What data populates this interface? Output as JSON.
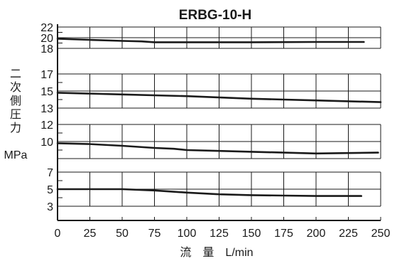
{
  "chart_data": {
    "type": "line",
    "title": "ERBG-10-H",
    "xlabel": "流　量　L/min",
    "ylabel_vertical": [
      "二",
      "次",
      "側",
      "圧",
      "力"
    ],
    "ylabel_unit": "MPa",
    "xlim": [
      0,
      250
    ],
    "x_ticks": [
      0,
      25,
      50,
      75,
      100,
      125,
      150,
      175,
      200,
      225,
      250
    ],
    "grid": true,
    "panels": [
      {
        "ylim": [
          18,
          22
        ],
        "y_ticks": [
          18,
          20,
          22
        ],
        "y_tick_labels": [
          "18",
          "20",
          "22"
        ],
        "x": [
          0,
          25,
          50,
          65,
          75,
          100,
          150,
          200,
          237
        ],
        "y": [
          19.8,
          19.6,
          19.4,
          19.3,
          19.15,
          19.15,
          19.15,
          19.2,
          19.2
        ]
      },
      {
        "ylim": [
          13,
          17
        ],
        "y_ticks": [
          13,
          15,
          17
        ],
        "y_tick_labels": [
          "13",
          "15",
          "17"
        ],
        "x": [
          0,
          50,
          100,
          150,
          200,
          250
        ],
        "y": [
          14.8,
          14.6,
          14.4,
          14.1,
          13.9,
          13.7
        ]
      },
      {
        "ylim": [
          8,
          12
        ],
        "y_ticks": [
          8,
          10,
          12
        ],
        "y_tick_labels": [
          "",
          "10",
          "12"
        ],
        "x": [
          0,
          25,
          50,
          75,
          90,
          100,
          125,
          150,
          175,
          200,
          225,
          248
        ],
        "y": [
          9.8,
          9.7,
          9.5,
          9.25,
          9.15,
          9.0,
          8.9,
          8.8,
          8.7,
          8.6,
          8.65,
          8.7
        ]
      },
      {
        "ylim": [
          3,
          7
        ],
        "y_ticks": [
          3,
          5,
          7
        ],
        "y_tick_labels": [
          "3",
          "5",
          "7"
        ],
        "x": [
          0,
          25,
          50,
          75,
          100,
          125,
          150,
          175,
          200,
          235
        ],
        "y": [
          5.0,
          5.0,
          5.0,
          4.85,
          4.6,
          4.4,
          4.3,
          4.25,
          4.2,
          4.2
        ]
      }
    ]
  }
}
